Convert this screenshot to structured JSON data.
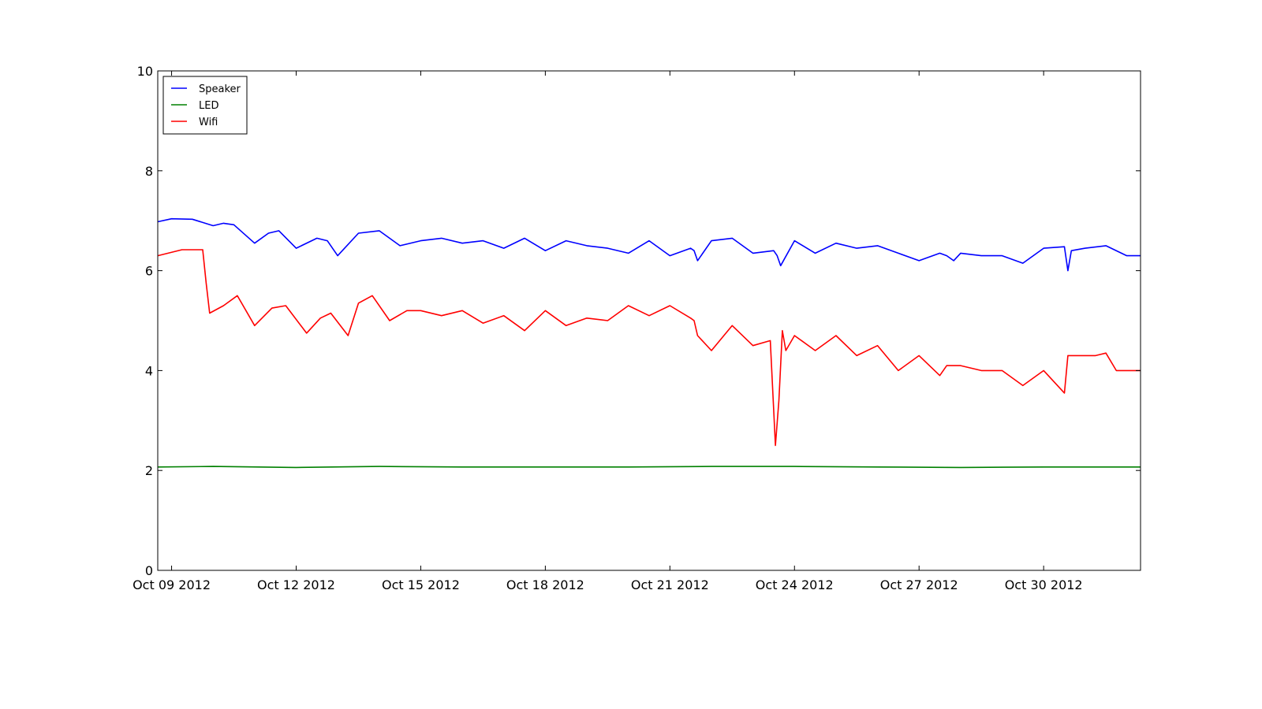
{
  "chart_data": {
    "type": "line",
    "title": "",
    "xlabel": "",
    "ylabel": "",
    "x_start": "2012-10-08T16:00",
    "x_end": "2012-11-01T08:00",
    "xlim": [
      "2012-10-08T16:00",
      "2012-11-01T08:00"
    ],
    "ylim": [
      0,
      10
    ],
    "grid": false,
    "legend_position": "top-left",
    "x_ticks": [
      {
        "date": "2012-10-09",
        "label": "Oct 09 2012"
      },
      {
        "date": "2012-10-12",
        "label": "Oct 12 2012"
      },
      {
        "date": "2012-10-15",
        "label": "Oct 15 2012"
      },
      {
        "date": "2012-10-18",
        "label": "Oct 18 2012"
      },
      {
        "date": "2012-10-21",
        "label": "Oct 21 2012"
      },
      {
        "date": "2012-10-24",
        "label": "Oct 24 2012"
      },
      {
        "date": "2012-10-27",
        "label": "Oct 27 2012"
      },
      {
        "date": "2012-10-30",
        "label": "Oct 30 2012"
      }
    ],
    "y_ticks": [
      {
        "value": 0,
        "label": "0"
      },
      {
        "value": 2,
        "label": "2"
      },
      {
        "value": 4,
        "label": "4"
      },
      {
        "value": 6,
        "label": "6"
      },
      {
        "value": 8,
        "label": "8"
      },
      {
        "value": 10,
        "label": "10"
      }
    ],
    "series": [
      {
        "name": "Speaker",
        "color": "#0000ff",
        "x": [
          "2012-10-08T16:00",
          "2012-10-09T00:00",
          "2012-10-09T12:00",
          "2012-10-10T00:00",
          "2012-10-10T06:00",
          "2012-10-10T12:00",
          "2012-10-11T00:00",
          "2012-10-11T08:00",
          "2012-10-11T14:00",
          "2012-10-12T00:00",
          "2012-10-12T12:00",
          "2012-10-12T18:00",
          "2012-10-13T00:00",
          "2012-10-13T12:00",
          "2012-10-14T00:00",
          "2012-10-14T12:00",
          "2012-10-15T00:00",
          "2012-10-15T12:00",
          "2012-10-16T00:00",
          "2012-10-16T12:00",
          "2012-10-17T00:00",
          "2012-10-17T12:00",
          "2012-10-18T00:00",
          "2012-10-18T12:00",
          "2012-10-19T00:00",
          "2012-10-19T12:00",
          "2012-10-20T00:00",
          "2012-10-20T12:00",
          "2012-10-21T00:00",
          "2012-10-21T12:00",
          "2012-10-21T14:00",
          "2012-10-21T16:00",
          "2012-10-22T00:00",
          "2012-10-22T12:00",
          "2012-10-23T00:00",
          "2012-10-23T12:00",
          "2012-10-23T14:00",
          "2012-10-23T16:00",
          "2012-10-24T00:00",
          "2012-10-24T12:00",
          "2012-10-25T00:00",
          "2012-10-25T12:00",
          "2012-10-26T00:00",
          "2012-10-26T12:00",
          "2012-10-27T00:00",
          "2012-10-27T12:00",
          "2012-10-27T16:00",
          "2012-10-27T20:00",
          "2012-10-28T00:00",
          "2012-10-28T12:00",
          "2012-10-29T00:00",
          "2012-10-29T12:00",
          "2012-10-30T00:00",
          "2012-10-30T12:00",
          "2012-10-30T14:00",
          "2012-10-30T16:00",
          "2012-10-31T00:00",
          "2012-10-31T12:00",
          "2012-11-01T00:00",
          "2012-11-01T08:00"
        ],
        "y": [
          6.98,
          7.04,
          7.03,
          6.9,
          6.95,
          6.92,
          6.55,
          6.75,
          6.8,
          6.45,
          6.65,
          6.6,
          6.3,
          6.75,
          6.8,
          6.5,
          6.6,
          6.65,
          6.55,
          6.6,
          6.45,
          6.65,
          6.4,
          6.6,
          6.5,
          6.45,
          6.35,
          6.6,
          6.3,
          6.45,
          6.4,
          6.2,
          6.6,
          6.65,
          6.35,
          6.4,
          6.3,
          6.1,
          6.6,
          6.35,
          6.55,
          6.45,
          6.5,
          6.35,
          6.2,
          6.35,
          6.3,
          6.2,
          6.35,
          6.3,
          6.3,
          6.15,
          6.45,
          6.48,
          6.0,
          6.4,
          6.45,
          6.5,
          6.3,
          6.3
        ]
      },
      {
        "name": "LED",
        "color": "#008000",
        "x": [
          "2012-10-08T16:00",
          "2012-10-10T00:00",
          "2012-10-12T00:00",
          "2012-10-14T00:00",
          "2012-10-16T00:00",
          "2012-10-18T00:00",
          "2012-10-20T00:00",
          "2012-10-22T00:00",
          "2012-10-24T00:00",
          "2012-10-26T00:00",
          "2012-10-28T00:00",
          "2012-10-30T00:00",
          "2012-11-01T08:00"
        ],
        "y": [
          2.07,
          2.08,
          2.06,
          2.08,
          2.07,
          2.07,
          2.07,
          2.08,
          2.08,
          2.07,
          2.06,
          2.07,
          2.07
        ]
      },
      {
        "name": "Wifi",
        "color": "#ff0000",
        "x": [
          "2012-10-08T16:00",
          "2012-10-09T06:00",
          "2012-10-09T18:00",
          "2012-10-09T20:00",
          "2012-10-09T22:00",
          "2012-10-10T06:00",
          "2012-10-10T14:00",
          "2012-10-11T00:00",
          "2012-10-11T10:00",
          "2012-10-11T18:00",
          "2012-10-12T06:00",
          "2012-10-12T14:00",
          "2012-10-12T20:00",
          "2012-10-13T06:00",
          "2012-10-13T12:00",
          "2012-10-13T20:00",
          "2012-10-14T06:00",
          "2012-10-14T16:00",
          "2012-10-15T00:00",
          "2012-10-15T12:00",
          "2012-10-16T00:00",
          "2012-10-16T12:00",
          "2012-10-17T00:00",
          "2012-10-17T12:00",
          "2012-10-18T00:00",
          "2012-10-18T12:00",
          "2012-10-19T00:00",
          "2012-10-19T12:00",
          "2012-10-20T00:00",
          "2012-10-20T12:00",
          "2012-10-21T00:00",
          "2012-10-21T12:00",
          "2012-10-21T14:00",
          "2012-10-21T16:00",
          "2012-10-22T00:00",
          "2012-10-22T12:00",
          "2012-10-23T00:00",
          "2012-10-23T10:00",
          "2012-10-23T13:00",
          "2012-10-23T15:00",
          "2012-10-23T17:00",
          "2012-10-23T19:00",
          "2012-10-24T00:00",
          "2012-10-24T12:00",
          "2012-10-25T00:00",
          "2012-10-25T12:00",
          "2012-10-26T00:00",
          "2012-10-26T12:00",
          "2012-10-27T00:00",
          "2012-10-27T12:00",
          "2012-10-27T16:00",
          "2012-10-28T00:00",
          "2012-10-28T12:00",
          "2012-10-29T00:00",
          "2012-10-29T12:00",
          "2012-10-30T00:00",
          "2012-10-30T12:00",
          "2012-10-30T14:00",
          "2012-10-30T18:00",
          "2012-10-31T06:00",
          "2012-10-31T12:00",
          "2012-10-31T18:00",
          "2012-11-01T00:00",
          "2012-11-01T08:00"
        ],
        "y": [
          6.3,
          6.42,
          6.42,
          5.75,
          5.15,
          5.3,
          5.5,
          4.9,
          5.25,
          5.3,
          4.75,
          5.05,
          5.15,
          4.7,
          5.35,
          5.5,
          5.0,
          5.2,
          5.2,
          5.1,
          5.2,
          4.95,
          5.1,
          4.8,
          5.2,
          4.9,
          5.05,
          5.0,
          5.3,
          5.1,
          5.3,
          5.05,
          5.0,
          4.7,
          4.4,
          4.9,
          4.5,
          4.6,
          2.5,
          3.4,
          4.8,
          4.4,
          4.7,
          4.4,
          4.7,
          4.3,
          4.5,
          4.0,
          4.3,
          3.9,
          4.1,
          4.1,
          4.0,
          4.0,
          3.7,
          4.0,
          3.55,
          4.3,
          4.3,
          4.3,
          4.35,
          4.0,
          4.0,
          4.0
        ]
      }
    ]
  }
}
